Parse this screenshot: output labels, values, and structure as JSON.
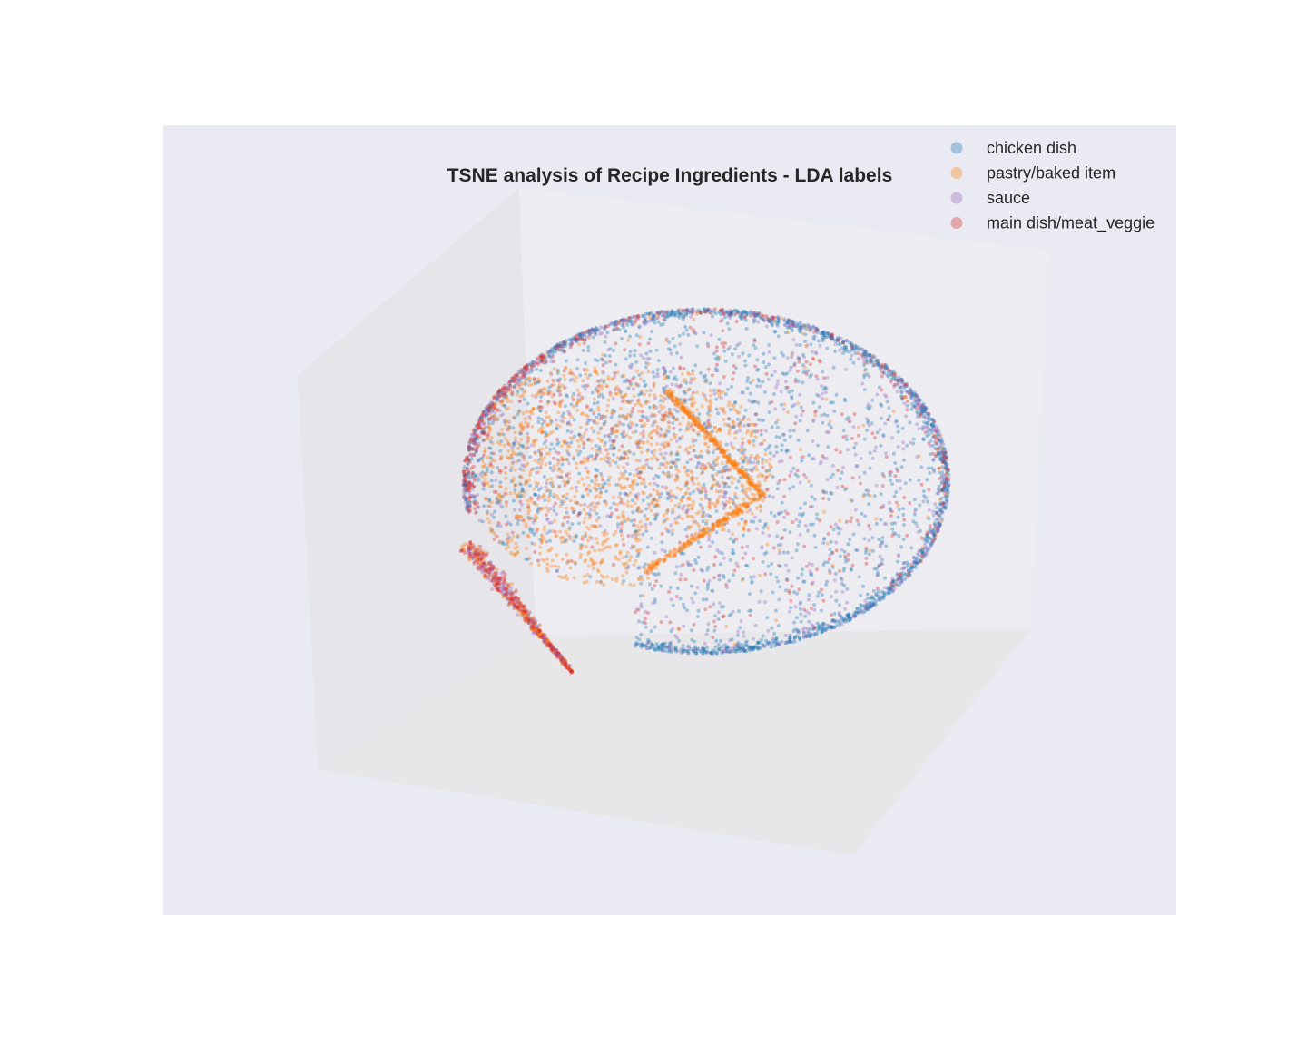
{
  "chart_data": {
    "type": "scatter",
    "projection": "3d",
    "title": "TSNE analysis of Recipe Ingredients - LDA labels",
    "xlabel": "",
    "ylabel": "",
    "zlabel": "",
    "grid": false,
    "legend": {
      "placement": "top-right"
    },
    "background_color": "#eaeaf2",
    "series": [
      {
        "name": "chicken dish",
        "color": "#1f77b4"
      },
      {
        "name": "pastry/baked item",
        "color": "#ff7f0e"
      },
      {
        "name": "sauce",
        "color": "#9467bd"
      },
      {
        "name": "main dish/meat_veggie",
        "color": "#d62728"
      }
    ]
  }
}
